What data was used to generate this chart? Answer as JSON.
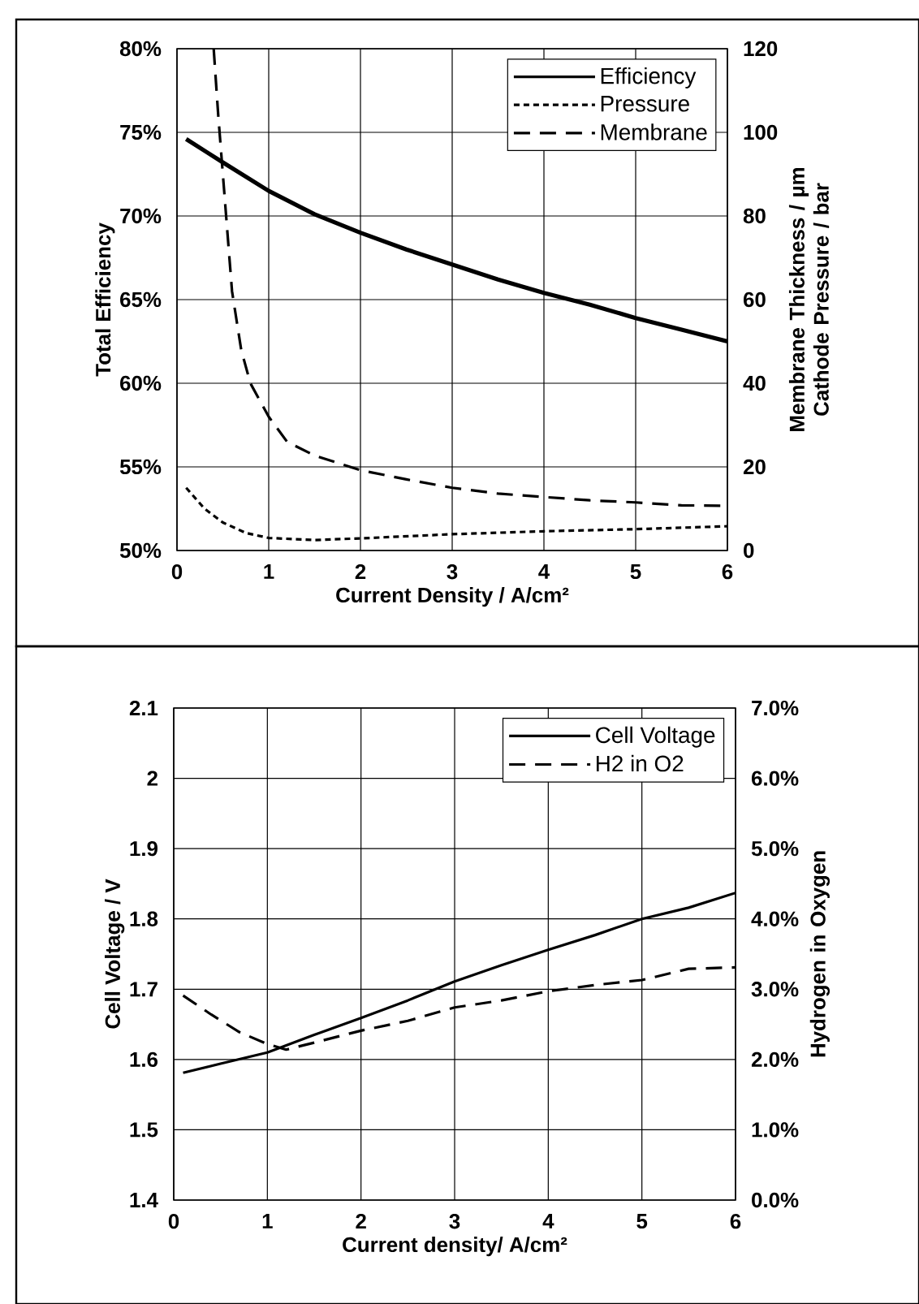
{
  "chart_data": [
    {
      "type": "line",
      "xlabel": "Current Density / A/cm²",
      "ylabel": "Total Efficiency",
      "y2label": "Membrane Thickness / µm Cathode Pressure / bar",
      "xlim": [
        0,
        6
      ],
      "xticks": [
        0,
        1,
        2,
        3,
        4,
        5,
        6
      ],
      "ylim": [
        50,
        80
      ],
      "yticks": [
        {
          "value": 50,
          "label": "50%"
        },
        {
          "value": 55,
          "label": "55%"
        },
        {
          "value": 60,
          "label": "60%"
        },
        {
          "value": 65,
          "label": "65%"
        },
        {
          "value": 70,
          "label": "70%"
        },
        {
          "value": 75,
          "label": "75%"
        },
        {
          "value": 80,
          "label": "80%"
        }
      ],
      "y2lim": [
        0,
        120
      ],
      "y2ticks": [
        0,
        20,
        40,
        60,
        80,
        100,
        120
      ],
      "grid": true,
      "legend": "top right",
      "series": [
        {
          "name": "Efficiency",
          "color": "#000000",
          "line_style": "solid",
          "x": [
            0.1,
            0.5,
            1,
            1.5,
            2,
            2.5,
            3,
            3.5,
            4,
            4.5,
            5,
            5.5,
            6
          ],
          "values": [
            74.6,
            73.2,
            71.5,
            70.1,
            69.0,
            68.0,
            67.1,
            66.2,
            65.4,
            64.7,
            63.9,
            63.2,
            62.5
          ]
        },
        {
          "name": "Pressure",
          "color": "#000000",
          "line_style": "dotted",
          "axis": "y2",
          "x": [
            0.1,
            0.3,
            0.5,
            0.75,
            1,
            1.5,
            2,
            3,
            4,
            5,
            6
          ],
          "values": [
            15,
            10,
            6.7,
            4.2,
            3,
            2.5,
            2.9,
            3.9,
            4.6,
            5.1,
            5.8
          ]
        },
        {
          "name": "Membrane",
          "color": "#000000",
          "line_style": "dashed",
          "axis": "y2",
          "x": [
            0.4,
            0.45,
            0.5,
            0.6,
            0.7,
            0.8,
            1,
            1.2,
            1.5,
            2,
            2.5,
            3,
            3.5,
            4,
            4.5,
            5,
            5.5,
            6
          ],
          "values": [
            120,
            104,
            90,
            62,
            48,
            40,
            32,
            26,
            22.7,
            19.2,
            17,
            15,
            13.6,
            12.8,
            12,
            11.5,
            10.8,
            10.7
          ]
        }
      ]
    },
    {
      "type": "line",
      "xlabel": "Current density/ A/cm²",
      "ylabel": "Cell Voltage / V",
      "y2label": "Hydrogen in Oxygen",
      "xlim": [
        0,
        6
      ],
      "xticks": [
        0,
        1,
        2,
        3,
        4,
        5,
        6
      ],
      "ylim": [
        1.4,
        2.1
      ],
      "yticks": [
        1.4,
        1.5,
        1.6,
        1.7,
        1.8,
        1.9,
        2,
        2.1
      ],
      "y2lim": [
        0,
        7
      ],
      "y2ticks": [
        {
          "value": 0,
          "label": "0.0%"
        },
        {
          "value": 1,
          "label": "1.0%"
        },
        {
          "value": 2,
          "label": "2.0%"
        },
        {
          "value": 3,
          "label": "3.0%"
        },
        {
          "value": 4,
          "label": "4.0%"
        },
        {
          "value": 5,
          "label": "5.0%"
        },
        {
          "value": 6,
          "label": "6.0%"
        },
        {
          "value": 7,
          "label": "7.0%"
        }
      ],
      "grid": true,
      "legend": "top right",
      "series": [
        {
          "name": "Cell Voltage",
          "color": "#000000",
          "line_style": "solid",
          "x": [
            0.1,
            0.5,
            1,
            1.5,
            2,
            2.5,
            3,
            3.5,
            4,
            4.5,
            5,
            5.5,
            6
          ],
          "values": [
            1.581,
            1.594,
            1.61,
            1.635,
            1.659,
            1.684,
            1.711,
            1.734,
            1.756,
            1.777,
            1.8,
            1.816,
            1.837
          ]
        },
        {
          "name": "H2 in O2",
          "color": "#000000",
          "line_style": "dashed",
          "axis": "y2",
          "x": [
            0.1,
            0.4,
            0.7,
            1,
            1.2,
            1.5,
            2,
            2.5,
            3,
            3.5,
            4,
            4.5,
            5,
            5.5,
            6
          ],
          "values": [
            2.91,
            2.64,
            2.39,
            2.22,
            2.14,
            2.24,
            2.41,
            2.55,
            2.74,
            2.84,
            2.97,
            3.06,
            3.13,
            3.29,
            3.31
          ]
        }
      ]
    }
  ]
}
